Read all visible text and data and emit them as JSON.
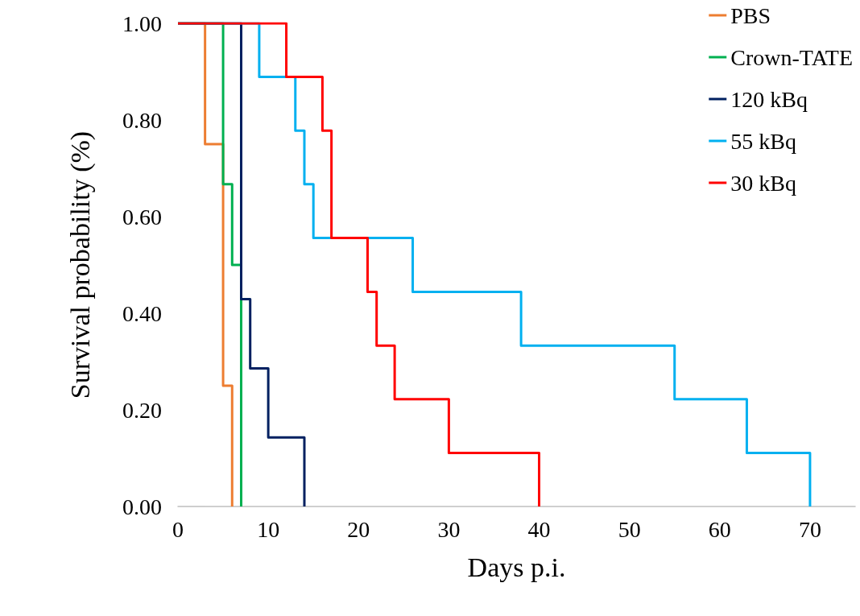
{
  "chart_data": {
    "type": "step",
    "xlabel": "Days p.i.",
    "ylabel": "Survival probability (%)",
    "xlim": [
      0,
      75
    ],
    "xticks": [
      0,
      10,
      20,
      30,
      40,
      50,
      60,
      70
    ],
    "ylim": [
      0,
      1
    ],
    "yticks": [
      {
        "value": 0,
        "label": "0.00"
      },
      {
        "value": 0.2,
        "label": "0.20"
      },
      {
        "value": 0.4,
        "label": "0.40"
      },
      {
        "value": 0.6,
        "label": "0.60"
      },
      {
        "value": 0.8,
        "label": "0.80"
      },
      {
        "value": 1,
        "label": "1.00"
      }
    ],
    "grid": false,
    "legend": "top right",
    "marker": "none",
    "line_style": "solid",
    "series": [
      {
        "name": "PBS",
        "color": "#ed7d31",
        "x": [
          0,
          3,
          5,
          6
        ],
        "values": [
          1,
          0.75,
          0.25,
          0
        ]
      },
      {
        "name": "Crown-TATE",
        "color": "#00b050",
        "x": [
          0,
          5,
          6,
          7
        ],
        "values": [
          1,
          0.667,
          0.5,
          0
        ]
      },
      {
        "name": "120 kBq",
        "color": "#002060",
        "x": [
          0,
          7,
          8,
          10,
          14
        ],
        "values": [
          1,
          0.429,
          0.286,
          0.143,
          0
        ]
      },
      {
        "name": "55 kBq",
        "color": "#00b0f0",
        "x": [
          0,
          9,
          13,
          14,
          15,
          26,
          38,
          55,
          63,
          70
        ],
        "values": [
          1,
          0.889,
          0.778,
          0.667,
          0.556,
          0.444,
          0.333,
          0.222,
          0.111,
          0
        ]
      },
      {
        "name": "30 kBq",
        "color": "#ff0000",
        "x": [
          0,
          12,
          16,
          17,
          21,
          22,
          24,
          30,
          40
        ],
        "values": [
          1,
          0.889,
          0.778,
          0.556,
          0.444,
          0.333,
          0.222,
          0.111,
          0
        ]
      }
    ]
  }
}
